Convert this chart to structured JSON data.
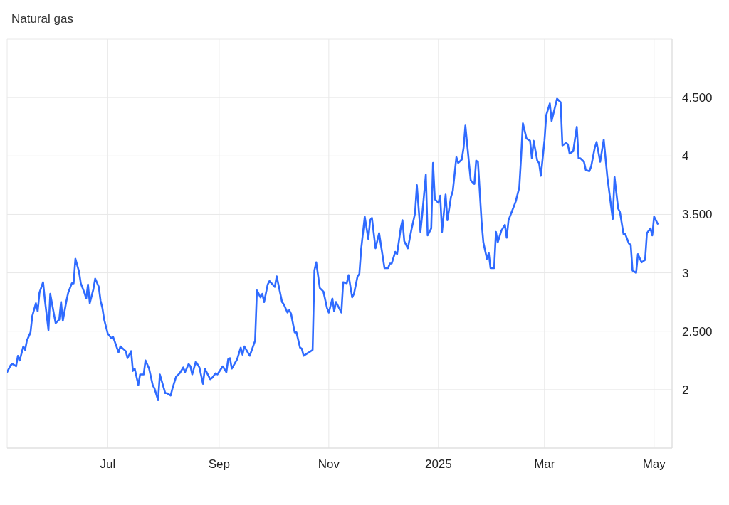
{
  "chart_data": {
    "type": "line",
    "title": "Natural gas",
    "x": [
      "2024-05-06",
      "2024-05-08",
      "2024-05-09",
      "2024-05-11",
      "2024-05-12",
      "2024-05-13",
      "2024-05-15",
      "2024-05-16",
      "2024-05-17",
      "2024-05-19",
      "2024-05-20",
      "2024-05-22",
      "2024-05-23",
      "2024-05-24",
      "2024-05-26",
      "2024-05-27",
      "2024-05-29",
      "2024-05-30",
      "2024-06-01",
      "2024-06-02",
      "2024-06-04",
      "2024-06-05",
      "2024-06-06",
      "2024-06-08",
      "2024-06-09",
      "2024-06-11",
      "2024-06-12",
      "2024-06-13",
      "2024-06-15",
      "2024-06-16",
      "2024-06-18",
      "2024-06-19",
      "2024-06-20",
      "2024-06-21",
      "2024-06-23",
      "2024-06-24",
      "2024-06-26",
      "2024-06-27",
      "2024-06-28",
      "2024-06-29",
      "2024-07-01",
      "2024-07-03",
      "2024-07-04",
      "2024-07-07",
      "2024-07-08",
      "2024-07-11",
      "2024-07-12",
      "2024-07-14",
      "2024-07-15",
      "2024-07-16",
      "2024-07-18",
      "2024-07-19",
      "2024-07-21",
      "2024-07-22",
      "2024-07-24",
      "2024-07-26",
      "2024-07-27",
      "2024-07-29",
      "2024-07-30",
      "2024-08-02",
      "2024-08-03",
      "2024-08-05",
      "2024-08-06",
      "2024-08-08",
      "2024-08-10",
      "2024-08-12",
      "2024-08-13",
      "2024-08-15",
      "2024-08-16",
      "2024-08-17",
      "2024-08-19",
      "2024-08-21",
      "2024-08-23",
      "2024-08-24",
      "2024-08-27",
      "2024-08-28",
      "2024-08-30",
      "2024-08-31",
      "2024-09-03",
      "2024-09-05",
      "2024-09-06",
      "2024-09-07",
      "2024-09-08",
      "2024-09-11",
      "2024-09-13",
      "2024-09-14",
      "2024-09-15",
      "2024-09-18",
      "2024-09-21",
      "2024-09-22",
      "2024-09-24",
      "2024-09-25",
      "2024-09-26",
      "2024-09-28",
      "2024-09-29",
      "2024-10-02",
      "2024-10-03",
      "2024-10-06",
      "2024-10-07",
      "2024-10-09",
      "2024-10-10",
      "2024-10-11",
      "2024-10-13",
      "2024-10-14",
      "2024-10-16",
      "2024-10-17",
      "2024-10-18",
      "2024-10-20",
      "2024-10-21",
      "2024-10-23",
      "2024-10-24",
      "2024-10-25",
      "2024-10-27",
      "2024-10-29",
      "2024-10-31",
      "2024-11-01",
      "2024-11-03",
      "2024-11-04",
      "2024-11-05",
      "2024-11-08",
      "2024-11-09",
      "2024-11-11",
      "2024-11-12",
      "2024-11-14",
      "2024-11-15",
      "2024-11-17",
      "2024-11-18",
      "2024-11-19",
      "2024-11-21",
      "2024-11-23",
      "2024-11-24",
      "2024-11-25",
      "2024-11-27",
      "2024-11-29",
      "2024-12-02",
      "2024-12-04",
      "2024-12-05",
      "2024-12-06",
      "2024-12-08",
      "2024-12-09",
      "2024-12-11",
      "2024-12-12",
      "2024-12-13",
      "2024-12-15",
      "2024-12-17",
      "2024-12-19",
      "2024-12-20",
      "2024-12-22",
      "2024-12-23",
      "2024-12-25",
      "2024-12-26",
      "2024-12-28",
      "2024-12-29",
      "2024-12-30",
      "2025-01-01",
      "2025-01-02",
      "2025-01-03",
      "2025-01-05",
      "2025-01-06",
      "2025-01-08",
      "2025-01-09",
      "2025-01-11",
      "2025-01-12",
      "2025-01-14",
      "2025-01-15",
      "2025-01-16",
      "2025-01-18",
      "2025-01-19",
      "2025-01-21",
      "2025-01-22",
      "2025-01-23",
      "2025-01-25",
      "2025-01-26",
      "2025-01-28",
      "2025-01-29",
      "2025-01-30",
      "2025-02-01",
      "2025-02-02",
      "2025-02-03",
      "2025-02-05",
      "2025-02-07",
      "2025-02-08",
      "2025-02-09",
      "2025-02-11",
      "2025-02-13",
      "2025-02-15",
      "2025-02-16",
      "2025-02-17",
      "2025-02-19",
      "2025-02-21",
      "2025-02-22",
      "2025-02-23",
      "2025-02-25",
      "2025-02-26",
      "2025-02-27",
      "2025-03-01",
      "2025-03-02",
      "2025-03-04",
      "2025-03-05",
      "2025-03-08",
      "2025-03-10",
      "2025-03-11",
      "2025-03-13",
      "2025-03-14",
      "2025-03-15",
      "2025-03-17",
      "2025-03-19",
      "2025-03-20",
      "2025-03-21",
      "2025-03-23",
      "2025-03-24",
      "2025-03-26",
      "2025-03-27",
      "2025-03-29",
      "2025-03-30",
      "2025-04-01",
      "2025-04-03",
      "2025-04-05",
      "2025-04-08",
      "2025-04-09",
      "2025-04-11",
      "2025-04-12",
      "2025-04-14",
      "2025-04-15",
      "2025-04-17",
      "2025-04-18",
      "2025-04-19",
      "2025-04-21",
      "2025-04-22",
      "2025-04-24",
      "2025-04-26",
      "2025-04-27",
      "2025-04-29",
      "2025-04-30",
      "2025-05-01",
      "2025-05-03"
    ],
    "series": [
      {
        "color": "#2f6bff",
        "values": [
          2.15,
          2.21,
          2.22,
          2.2,
          2.29,
          2.25,
          2.37,
          2.34,
          2.42,
          2.49,
          2.63,
          2.74,
          2.67,
          2.83,
          2.92,
          2.77,
          2.51,
          2.82,
          2.65,
          2.57,
          2.6,
          2.75,
          2.59,
          2.76,
          2.83,
          2.91,
          2.91,
          3.12,
          3.01,
          2.91,
          2.83,
          2.78,
          2.9,
          2.74,
          2.86,
          2.95,
          2.88,
          2.76,
          2.7,
          2.6,
          2.48,
          2.44,
          2.45,
          2.32,
          2.37,
          2.33,
          2.27,
          2.33,
          2.16,
          2.18,
          2.04,
          2.13,
          2.13,
          2.25,
          2.18,
          2.04,
          2.01,
          1.91,
          2.13,
          1.97,
          1.97,
          1.95,
          2.01,
          2.11,
          2.14,
          2.19,
          2.15,
          2.22,
          2.2,
          2.13,
          2.24,
          2.19,
          2.05,
          2.18,
          2.09,
          2.1,
          2.14,
          2.13,
          2.2,
          2.15,
          2.26,
          2.27,
          2.18,
          2.26,
          2.36,
          2.3,
          2.37,
          2.29,
          2.42,
          2.85,
          2.79,
          2.82,
          2.75,
          2.9,
          2.93,
          2.88,
          2.97,
          2.75,
          2.73,
          2.66,
          2.68,
          2.65,
          2.49,
          2.49,
          2.36,
          2.35,
          2.29,
          2.31,
          2.32,
          2.34,
          3.02,
          3.09,
          2.87,
          2.84,
          2.7,
          2.66,
          2.78,
          2.67,
          2.75,
          2.66,
          2.92,
          2.91,
          2.98,
          2.79,
          2.82,
          2.97,
          2.99,
          3.2,
          3.48,
          3.29,
          3.45,
          3.47,
          3.21,
          3.34,
          3.04,
          3.04,
          3.08,
          3.08,
          3.18,
          3.16,
          3.38,
          3.45,
          3.27,
          3.21,
          3.37,
          3.51,
          3.75,
          3.35,
          3.5,
          3.84,
          3.32,
          3.38,
          3.94,
          3.63,
          3.6,
          3.66,
          3.35,
          3.67,
          3.45,
          3.65,
          3.7,
          3.99,
          3.94,
          3.97,
          4.07,
          4.26,
          3.94,
          3.79,
          3.76,
          3.96,
          3.95,
          3.44,
          3.26,
          3.12,
          3.17,
          3.04,
          3.04,
          3.35,
          3.26,
          3.36,
          3.41,
          3.3,
          3.45,
          3.53,
          3.61,
          3.73,
          3.99,
          4.28,
          4.15,
          4.13,
          3.98,
          4.13,
          3.96,
          3.94,
          3.83,
          4.13,
          4.35,
          4.45,
          4.3,
          4.49,
          4.46,
          4.09,
          4.11,
          4.1,
          4.02,
          4.04,
          4.25,
          3.98,
          3.98,
          3.95,
          3.88,
          3.87,
          3.91,
          4.07,
          4.12,
          3.95,
          4.14,
          3.82,
          3.46,
          3.82,
          3.55,
          3.52,
          3.33,
          3.33,
          3.25,
          3.24,
          3.02,
          3.0,
          3.16,
          3.09,
          3.11,
          3.34,
          3.38,
          3.32,
          3.48,
          3.42
        ]
      }
    ],
    "xlim": [
      "2024-05-06",
      "2025-05-11"
    ],
    "xticks": [
      {
        "value": "2024-07-01",
        "label": "Jul"
      },
      {
        "value": "2024-09-01",
        "label": "Sep"
      },
      {
        "value": "2024-11-01",
        "label": "Nov"
      },
      {
        "value": "2025-01-01",
        "label": "2025"
      },
      {
        "value": "2025-03-01",
        "label": "Mar"
      },
      {
        "value": "2025-05-01",
        "label": "May"
      }
    ],
    "ylim": [
      1.5,
      5
    ],
    "yticks": [
      2,
      {
        "value": 2.5,
        "label": "2.500"
      },
      3,
      {
        "value": 3.5,
        "label": "3.500"
      },
      4,
      {
        "value": 4.5,
        "label": "4.500"
      }
    ],
    "grid": true
  }
}
